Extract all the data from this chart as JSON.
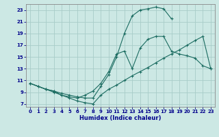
{
  "xlabel": "Humidex (Indice chaleur)",
  "xlim": [
    -0.5,
    23.5
  ],
  "ylim": [
    6.5,
    24.0
  ],
  "xticks": [
    0,
    1,
    2,
    3,
    4,
    5,
    6,
    7,
    8,
    9,
    10,
    11,
    12,
    13,
    14,
    15,
    16,
    17,
    18,
    19,
    20,
    21,
    22,
    23
  ],
  "yticks": [
    7,
    9,
    11,
    13,
    15,
    17,
    19,
    21,
    23
  ],
  "bg_color": "#cce8e4",
  "grid_color": "#a8ccc8",
  "line_color": "#1a6b60",
  "line1_x": [
    0,
    1,
    2,
    3,
    4,
    5,
    6,
    7,
    8,
    9,
    10,
    11,
    12,
    13,
    14,
    15,
    16,
    17,
    18,
    19,
    20,
    21,
    22,
    23
  ],
  "line1_y": [
    10.5,
    10.0,
    9.5,
    9.0,
    8.5,
    8.0,
    7.5,
    7.2,
    7.0,
    8.5,
    9.5,
    10.2,
    11.0,
    11.8,
    12.5,
    13.2,
    14.0,
    14.8,
    15.5,
    16.2,
    17.0,
    17.8,
    18.5,
    13.0
  ],
  "line2_x": [
    0,
    1,
    2,
    3,
    4,
    5,
    6,
    7,
    8,
    9,
    10,
    11,
    12,
    13,
    14,
    15,
    16,
    17,
    18
  ],
  "line2_y": [
    10.5,
    10.0,
    9.5,
    9.2,
    8.8,
    8.5,
    8.2,
    8.0,
    8.0,
    10.0,
    12.0,
    15.0,
    19.0,
    22.0,
    23.0,
    23.2,
    23.5,
    23.2,
    21.5
  ],
  "line3_x": [
    0,
    2,
    3,
    4,
    5,
    6,
    7,
    8,
    9,
    10,
    11,
    12,
    13,
    14,
    15,
    16,
    17,
    18,
    19,
    20,
    21,
    22,
    23
  ],
  "line3_y": [
    10.5,
    9.5,
    9.2,
    8.5,
    8.2,
    8.0,
    8.5,
    9.2,
    10.5,
    12.5,
    15.5,
    16.0,
    13.0,
    16.5,
    18.0,
    18.5,
    18.5,
    16.0,
    15.5,
    15.2,
    14.8,
    13.5,
    13.0
  ]
}
